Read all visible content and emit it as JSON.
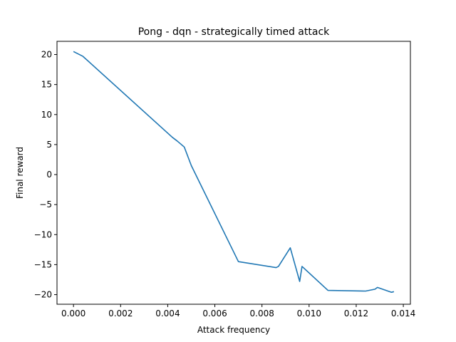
{
  "chart_data": {
    "type": "line",
    "title": "Pong - dqn - strategically timed attack",
    "xlabel": "Attack frequency",
    "ylabel": "Final reward",
    "xlim": [
      -0.0007,
      0.0143
    ],
    "ylim": [
      -21.6,
      22.2
    ],
    "xticks": [
      0.0,
      0.002,
      0.004,
      0.006,
      0.008,
      0.01,
      0.012,
      0.014
    ],
    "xtick_labels": [
      "0.000",
      "0.002",
      "0.004",
      "0.006",
      "0.008",
      "0.010",
      "0.012",
      "0.014"
    ],
    "yticks": [
      -20,
      -15,
      -10,
      -5,
      0,
      5,
      10,
      15,
      20
    ],
    "ytick_labels": [
      "−20",
      "−15",
      "−10",
      "−5",
      "0",
      "5",
      "10",
      "15",
      "20"
    ],
    "grid": false,
    "series": [
      {
        "color": "#1f77b4",
        "x": [
          0.0,
          0.0004,
          0.0042,
          0.0044,
          0.0047,
          0.005,
          0.007,
          0.0086,
          0.0087,
          0.0092,
          0.0096,
          0.0097,
          0.0108,
          0.0124,
          0.0128,
          0.0129,
          0.0135,
          0.0136
        ],
        "y": [
          20.5,
          19.7,
          6.2,
          5.6,
          4.6,
          1.5,
          -14.5,
          -15.5,
          -15.3,
          -12.2,
          -17.8,
          -15.3,
          -19.3,
          -19.4,
          -19.1,
          -18.8,
          -19.6,
          -19.5
        ]
      }
    ]
  }
}
